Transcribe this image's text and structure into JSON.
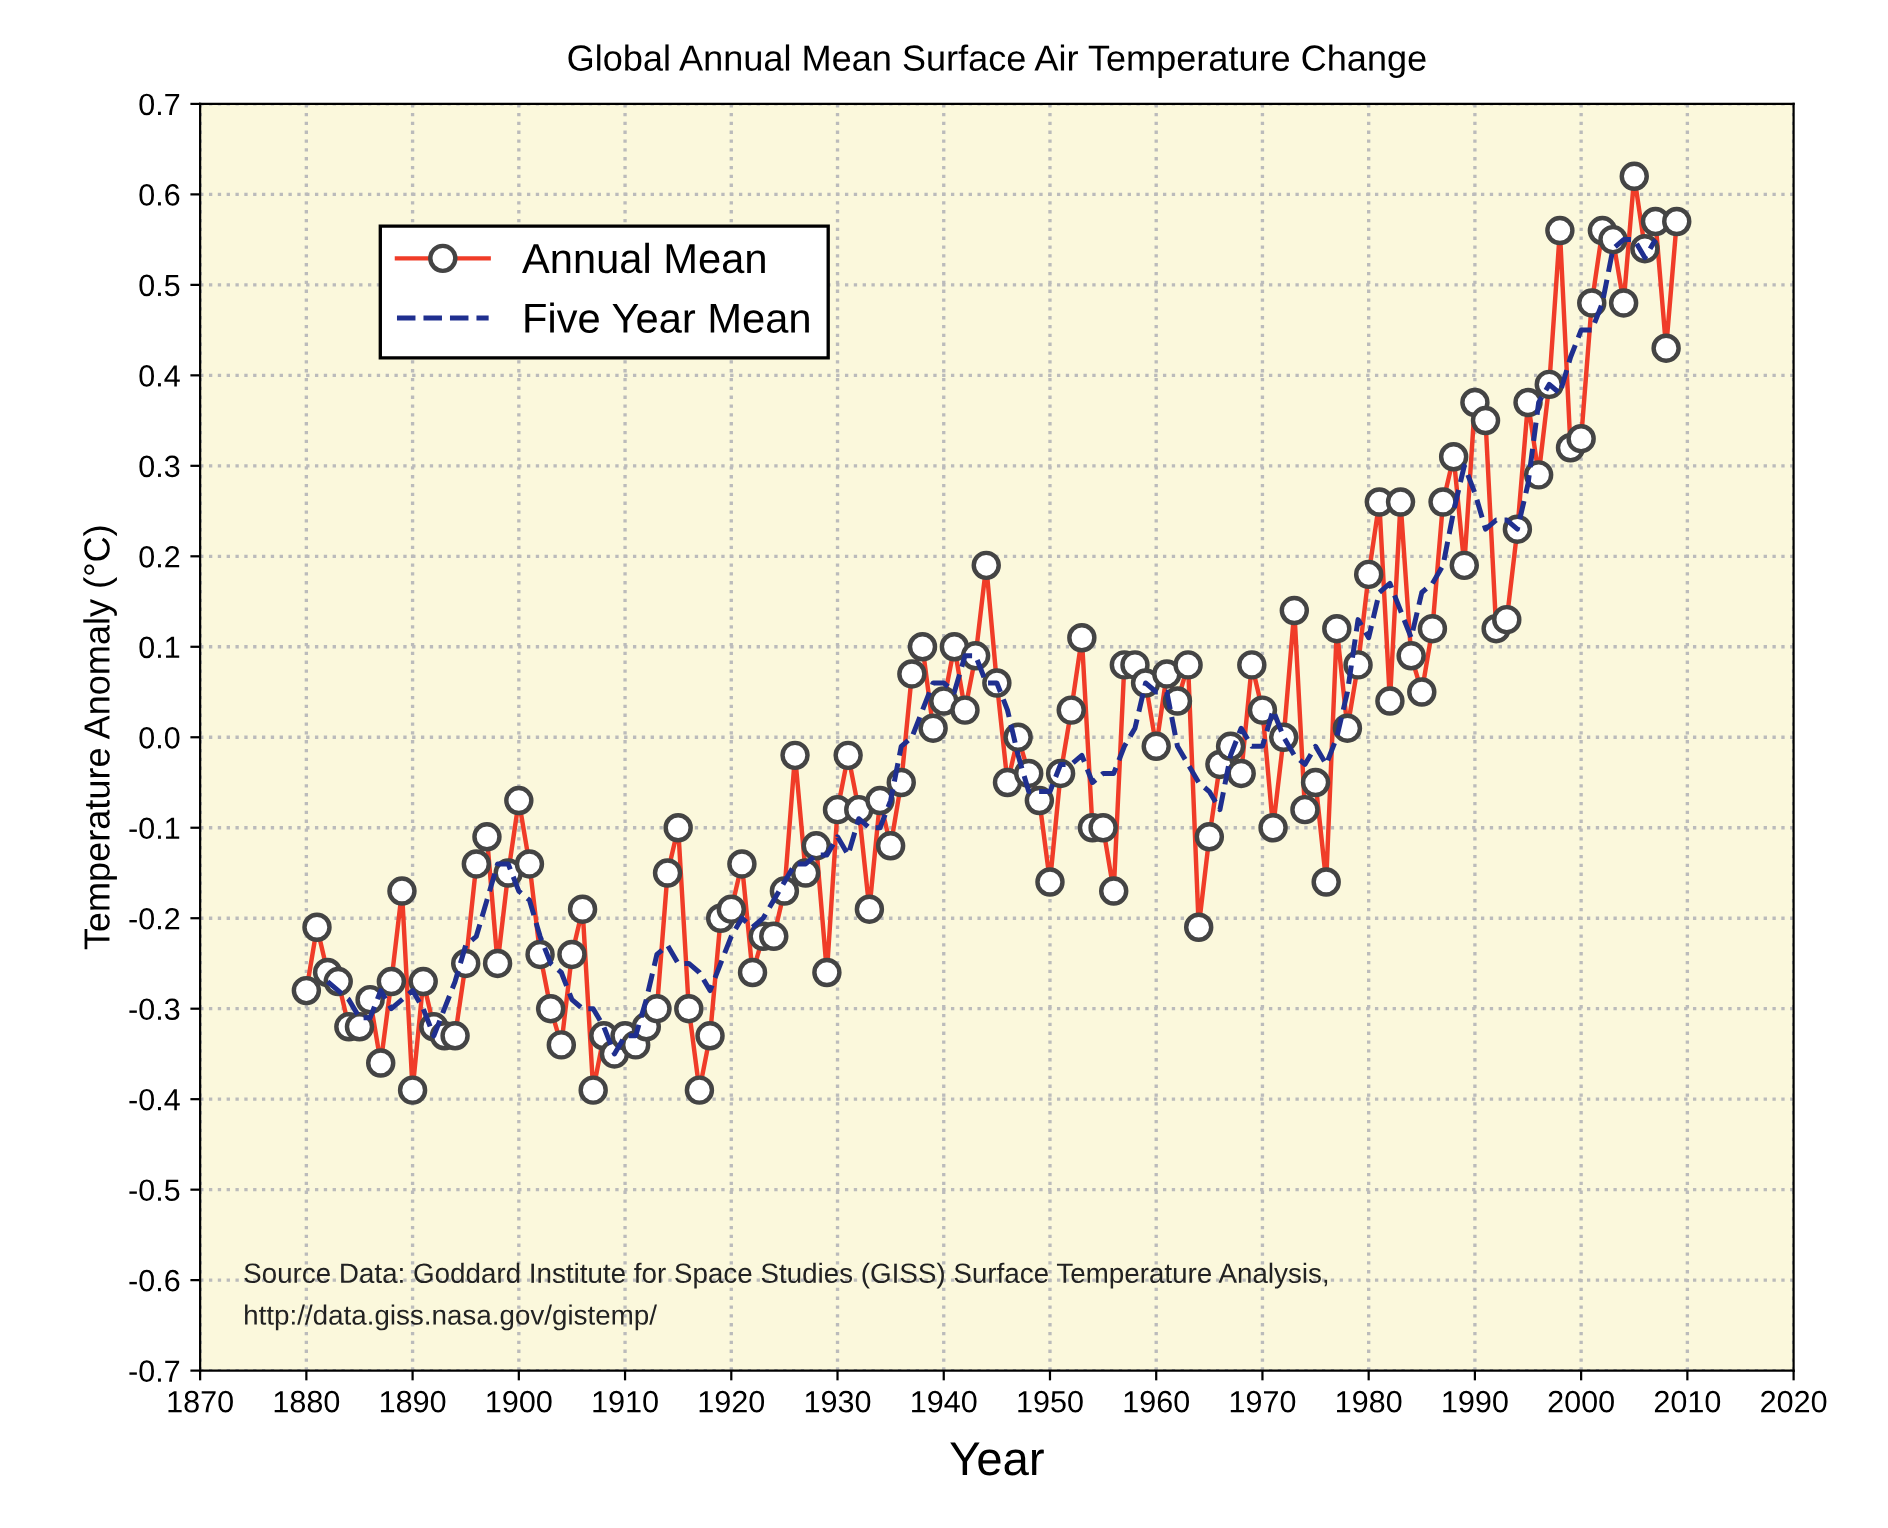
{
  "chart_data": {
    "type": "line",
    "title": "Global Annual Mean Surface Air Temperature Change",
    "xlabel": "Year",
    "ylabel": "Temperature Anomaly (°C)",
    "xlim": [
      1870,
      2020
    ],
    "xticks": [
      1870,
      1880,
      1890,
      1900,
      1910,
      1920,
      1930,
      1940,
      1950,
      1960,
      1970,
      1980,
      1990,
      2000,
      2010,
      2020
    ],
    "ylim": [
      -0.7,
      0.7
    ],
    "yticks": [
      -0.7,
      -0.6,
      -0.5,
      -0.4,
      -0.3,
      -0.2,
      -0.1,
      {
        "value": 0,
        "label": "0.0"
      },
      0.1,
      0.2,
      0.3,
      0.4,
      0.5,
      0.6,
      0.7
    ],
    "grid": true,
    "legend": "top left",
    "annotations": [
      "Source Data: Goddard Institute for Space Studies (GISS) Surface Temperature Analysis,",
      "http://data.giss.nasa.gov/gistemp/"
    ],
    "series": [
      {
        "name": "Annual Mean",
        "color": "#f03c28",
        "marker": "circle",
        "line_style": "solid",
        "x": [
          1880,
          1881,
          1882,
          1883,
          1884,
          1885,
          1886,
          1887,
          1888,
          1889,
          1890,
          1891,
          1892,
          1893,
          1894,
          1895,
          1896,
          1897,
          1898,
          1899,
          1900,
          1901,
          1902,
          1903,
          1904,
          1905,
          1906,
          1907,
          1908,
          1909,
          1910,
          1911,
          1912,
          1913,
          1914,
          1915,
          1916,
          1917,
          1918,
          1919,
          1920,
          1921,
          1922,
          1923,
          1924,
          1925,
          1926,
          1927,
          1928,
          1929,
          1930,
          1931,
          1932,
          1933,
          1934,
          1935,
          1936,
          1937,
          1938,
          1939,
          1940,
          1941,
          1942,
          1943,
          1944,
          1945,
          1946,
          1947,
          1948,
          1949,
          1950,
          1951,
          1952,
          1953,
          1954,
          1955,
          1956,
          1957,
          1958,
          1959,
          1960,
          1961,
          1962,
          1963,
          1964,
          1965,
          1966,
          1967,
          1968,
          1969,
          1970,
          1971,
          1972,
          1973,
          1974,
          1975,
          1976,
          1977,
          1978,
          1979,
          1980,
          1981,
          1982,
          1983,
          1984,
          1985,
          1986,
          1987,
          1988,
          1989,
          1990,
          1991,
          1992,
          1993,
          1994,
          1995,
          1996,
          1997,
          1998,
          1999,
          2000,
          2001,
          2002,
          2003,
          2004,
          2005,
          2006,
          2007,
          2008,
          2009
        ],
        "values": [
          -0.28,
          -0.21,
          -0.26,
          -0.27,
          -0.32,
          -0.32,
          -0.29,
          -0.36,
          -0.27,
          -0.17,
          -0.39,
          -0.27,
          -0.32,
          -0.33,
          -0.33,
          -0.25,
          -0.14,
          -0.11,
          -0.25,
          -0.15,
          -0.07,
          -0.14,
          -0.24,
          -0.3,
          -0.34,
          -0.24,
          -0.19,
          -0.39,
          -0.33,
          -0.35,
          -0.33,
          -0.34,
          -0.32,
          -0.3,
          -0.15,
          -0.1,
          -0.3,
          -0.39,
          -0.33,
          -0.2,
          -0.19,
          -0.14,
          -0.26,
          -0.22,
          -0.22,
          -0.17,
          -0.02,
          -0.15,
          -0.12,
          -0.26,
          -0.08,
          -0.02,
          -0.08,
          -0.19,
          -0.07,
          -0.12,
          -0.05,
          0.07,
          0.1,
          0.01,
          0.04,
          0.1,
          0.03,
          0.09,
          0.19,
          0.06,
          -0.05,
          0.0,
          -0.04,
          -0.07,
          -0.16,
          -0.04,
          0.03,
          0.11,
          -0.1,
          -0.1,
          -0.17,
          0.08,
          0.08,
          0.06,
          -0.01,
          0.07,
          0.04,
          0.08,
          -0.21,
          -0.11,
          -0.03,
          -0.01,
          -0.04,
          0.08,
          0.03,
          -0.1,
          0.0,
          0.14,
          -0.08,
          -0.05,
          -0.16,
          0.12,
          0.01,
          0.08,
          0.18,
          0.26,
          0.04,
          0.26,
          0.09,
          0.05,
          0.12,
          0.26,
          0.31,
          0.19,
          0.37,
          0.35,
          0.12,
          0.13,
          0.23,
          0.37,
          0.29,
          0.39,
          0.56,
          0.32,
          0.33,
          0.48,
          0.56,
          0.55,
          0.48,
          0.62,
          0.54,
          0.57,
          0.43,
          0.57
        ]
      },
      {
        "name": "Five Year Mean",
        "color": "#1f2f8f",
        "marker": "none",
        "line_style": "dashed",
        "x": [
          1882,
          1883,
          1884,
          1885,
          1886,
          1887,
          1888,
          1889,
          1890,
          1891,
          1892,
          1893,
          1894,
          1895,
          1896,
          1897,
          1898,
          1899,
          1900,
          1901,
          1902,
          1903,
          1904,
          1905,
          1906,
          1907,
          1908,
          1909,
          1910,
          1911,
          1912,
          1913,
          1914,
          1915,
          1916,
          1917,
          1918,
          1919,
          1920,
          1921,
          1922,
          1923,
          1924,
          1925,
          1926,
          1927,
          1928,
          1929,
          1930,
          1931,
          1932,
          1933,
          1934,
          1935,
          1936,
          1937,
          1938,
          1939,
          1940,
          1941,
          1942,
          1943,
          1944,
          1945,
          1946,
          1947,
          1948,
          1949,
          1950,
          1951,
          1952,
          1953,
          1954,
          1955,
          1956,
          1957,
          1958,
          1959,
          1960,
          1961,
          1962,
          1963,
          1964,
          1965,
          1966,
          1967,
          1968,
          1969,
          1970,
          1971,
          1972,
          1973,
          1974,
          1975,
          1976,
          1977,
          1978,
          1979,
          1980,
          1981,
          1982,
          1983,
          1984,
          1985,
          1986,
          1987,
          1988,
          1989,
          1990,
          1991,
          1992,
          1993,
          1994,
          1995,
          1996,
          1997,
          1998,
          1999,
          2000,
          2001,
          2002,
          2003,
          2004,
          2005,
          2006,
          2007
        ],
        "values": [
          -0.27,
          -0.28,
          -0.29,
          -0.31,
          -0.31,
          -0.28,
          -0.3,
          -0.29,
          -0.28,
          -0.3,
          -0.33,
          -0.3,
          -0.27,
          -0.23,
          -0.22,
          -0.18,
          -0.14,
          -0.14,
          -0.17,
          -0.18,
          -0.22,
          -0.25,
          -0.26,
          -0.29,
          -0.3,
          -0.3,
          -0.32,
          -0.35,
          -0.33,
          -0.33,
          -0.29,
          -0.24,
          -0.23,
          -0.25,
          -0.25,
          -0.26,
          -0.28,
          -0.25,
          -0.22,
          -0.2,
          -0.21,
          -0.2,
          -0.18,
          -0.16,
          -0.14,
          -0.14,
          -0.13,
          -0.13,
          -0.11,
          -0.13,
          -0.09,
          -0.1,
          -0.1,
          -0.07,
          -0.01,
          0.0,
          0.03,
          0.06,
          0.06,
          0.05,
          0.09,
          0.09,
          0.06,
          0.06,
          0.03,
          -0.02,
          -0.06,
          -0.06,
          -0.06,
          -0.03,
          -0.03,
          -0.02,
          -0.05,
          -0.04,
          -0.04,
          -0.01,
          0.01,
          0.06,
          0.05,
          0.05,
          -0.01,
          -0.03,
          -0.05,
          -0.06,
          -0.08,
          -0.02,
          0.01,
          -0.01,
          -0.01,
          0.03,
          0.0,
          -0.02,
          -0.03,
          -0.01,
          -0.03,
          0.0,
          0.05,
          0.13,
          0.11,
          0.16,
          0.17,
          0.14,
          0.11,
          0.16,
          0.17,
          0.19,
          0.25,
          0.3,
          0.27,
          0.23,
          0.24,
          0.24,
          0.23,
          0.28,
          0.37,
          0.39,
          0.38,
          0.42,
          0.45,
          0.45,
          0.48,
          0.54,
          0.55,
          0.55,
          0.53,
          0.55
        ]
      }
    ]
  }
}
